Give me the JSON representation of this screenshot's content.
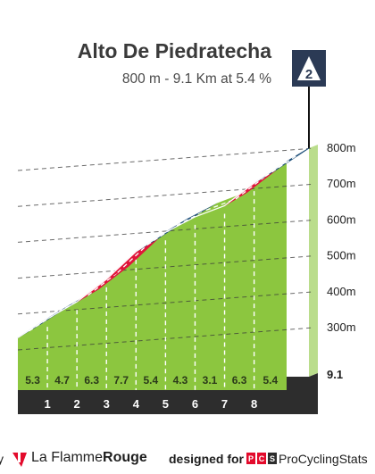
{
  "title": "Alto De Piedratecha",
  "subtitle": "800 m - 9.1 Km at 5.4 %",
  "category_badge": "2",
  "footer": {
    "by_text": "y",
    "brand_left": "La Flamme",
    "brand_right": "Rouge",
    "designed_text": "designed for",
    "pcs_logo": "PCS",
    "pcs_text": "ProCyclingStats"
  },
  "colors": {
    "fill": "#8cc63f",
    "base": "#2d2d2d",
    "start_wall": "#a59a8d",
    "easy": "#8cc63f",
    "medium": "#1e4f7a",
    "hard": "#e0153a",
    "badge": "#2b3a55",
    "footer_accent": "#e30b2c"
  },
  "chart_data": {
    "type": "area",
    "x_unit": "km",
    "y_unit": "m",
    "ylim": [
      230,
      830
    ],
    "xlim": [
      0,
      9.1
    ],
    "y_ticks": [
      300,
      400,
      500,
      600,
      700,
      800
    ],
    "y_tick_labels": [
      "300m",
      "400m",
      "500m",
      "600m",
      "700m",
      "800m"
    ],
    "elevation_points": [
      {
        "km": 0,
        "elev": 309
      },
      {
        "km": 1,
        "elev": 362
      },
      {
        "km": 2,
        "elev": 409
      },
      {
        "km": 3,
        "elev": 472
      },
      {
        "km": 4,
        "elev": 549
      },
      {
        "km": 5,
        "elev": 603
      },
      {
        "km": 6,
        "elev": 646
      },
      {
        "km": 7,
        "elev": 677
      },
      {
        "km": 8,
        "elev": 740
      },
      {
        "km": 9.1,
        "elev": 800
      }
    ],
    "segments": [
      {
        "km": "1",
        "gradient": "5.3",
        "band": "medium"
      },
      {
        "km": "2",
        "gradient": "4.7",
        "band": "medium"
      },
      {
        "km": "3",
        "gradient": "6.3",
        "band": "hard"
      },
      {
        "km": "4",
        "gradient": "7.7",
        "band": "hard"
      },
      {
        "km": "5",
        "gradient": "5.4",
        "band": "medium"
      },
      {
        "km": "6",
        "gradient": "4.3",
        "band": "medium"
      },
      {
        "km": "7",
        "gradient": "3.1",
        "band": "easy"
      },
      {
        "km": "8",
        "gradient": "6.3",
        "band": "hard"
      },
      {
        "km": "",
        "gradient": "5.4",
        "band": "medium"
      }
    ],
    "end_label": "9.1"
  }
}
